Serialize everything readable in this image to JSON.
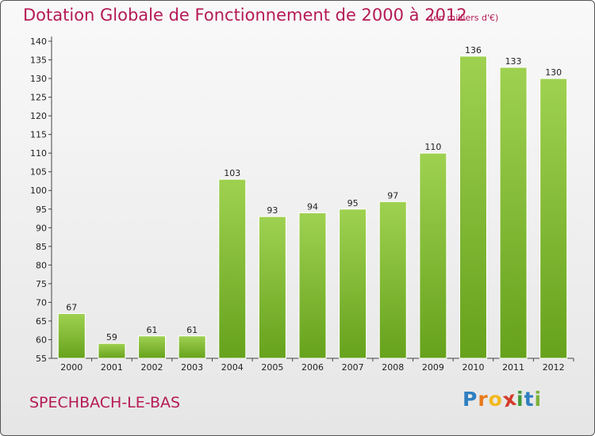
{
  "header": {
    "title": "Dotation Globale de Fonctionnement de 2000 à 2012",
    "unit": "(en milliers d'€)"
  },
  "footer": {
    "commune": "SPECHBACH-LE-BAS",
    "logo_letters": [
      "P",
      "r",
      "o",
      "x",
      "i",
      "t",
      "i"
    ],
    "logo_colors": [
      "#2f7fc1",
      "#e8791a",
      "#f2b81c",
      "#d43b2a",
      "#3f9b3a",
      "#2f7fc1",
      "#7db23a"
    ]
  },
  "colors": {
    "bar_light": "#9fd151",
    "bar_dark": "#66a21c",
    "accent": "#b51a55"
  },
  "chart_data": {
    "type": "bar",
    "categories": [
      "2000",
      "2001",
      "2002",
      "2003",
      "2004",
      "2005",
      "2006",
      "2007",
      "2008",
      "2009",
      "2010",
      "2011",
      "2012"
    ],
    "values": [
      67,
      59,
      61,
      61,
      103,
      93,
      94,
      95,
      97,
      110,
      136,
      133,
      130
    ],
    "ylim": [
      55,
      140
    ],
    "yticks": [
      55,
      60,
      65,
      70,
      75,
      80,
      85,
      90,
      95,
      100,
      105,
      110,
      115,
      120,
      125,
      130,
      135,
      140
    ],
    "grid": false,
    "xlabel": "",
    "ylabel": ""
  }
}
